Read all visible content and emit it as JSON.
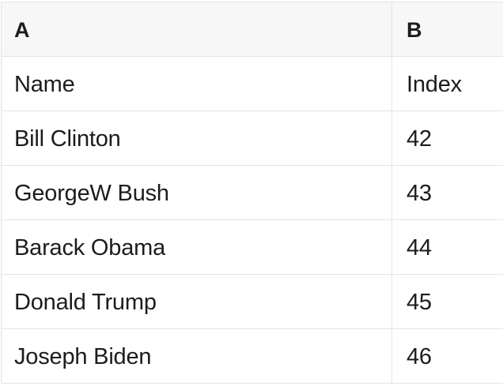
{
  "table": {
    "columns": [
      {
        "label": "A"
      },
      {
        "label": "B"
      }
    ],
    "rows": [
      [
        "Name",
        "Index"
      ],
      [
        "Bill Clinton",
        "42"
      ],
      [
        "GeorgeW Bush",
        "43"
      ],
      [
        "Barack Obama",
        "44"
      ],
      [
        "Donald Trump",
        "45"
      ],
      [
        "Joseph Biden",
        "46"
      ]
    ]
  },
  "colors": {
    "background": "#ffffff",
    "header_bg": "#f7f7f7",
    "border": "#e4e4e4",
    "text": "#1c1c1e"
  }
}
